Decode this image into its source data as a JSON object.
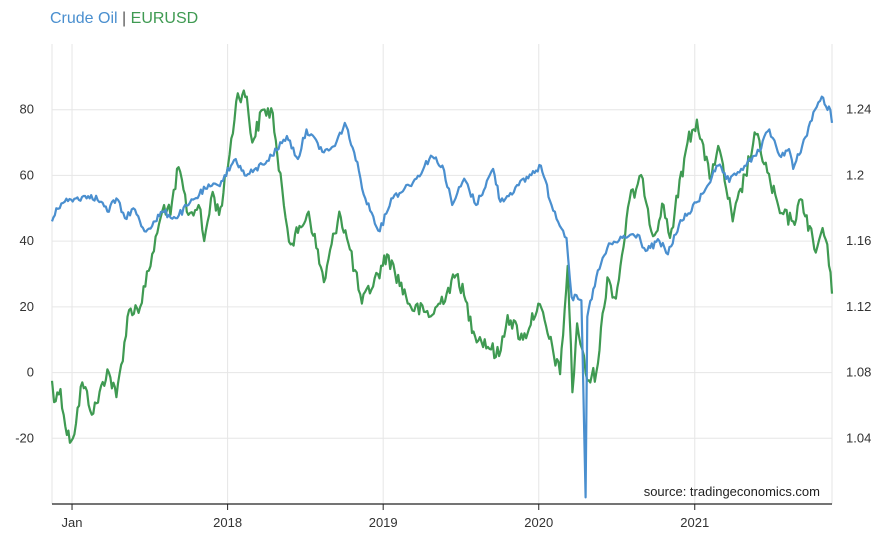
{
  "title": {
    "series1": "Crude Oil",
    "separator": "|",
    "series2": "EURUSD"
  },
  "source": "source: tradingeconomics.com",
  "colors": {
    "crude_oil": "#4a8fcf",
    "eurusd": "#3f9a52",
    "grid": "#e6e6e6",
    "axis": "#222222"
  },
  "chart_data": {
    "type": "line",
    "title": "",
    "xlabel": "",
    "ylabel_left": "",
    "ylabel_right": "",
    "x_ticks": [
      "Jan",
      "2018",
      "2019",
      "2020",
      "2021"
    ],
    "x_tick_dates": [
      "2017-01-01",
      "2018-01-01",
      "2019-01-01",
      "2020-01-01",
      "2021-01-01"
    ],
    "x_range": [
      "2016-11-15",
      "2021-11-19"
    ],
    "y_left_ticks": [
      80,
      60,
      40,
      20,
      0,
      -20
    ],
    "y_left_range": [
      -40,
      100
    ],
    "y_right_ticks": [
      "1.24",
      "1.2",
      "1.16",
      "1.12",
      "1.08",
      "1.04"
    ],
    "y_right_range": [
      1.0,
      1.28
    ],
    "grid": true,
    "legend": "top-left",
    "series": [
      {
        "name": "Crude Oil",
        "axis": "left",
        "points": [
          [
            "2016-11-15",
            46
          ],
          [
            "2016-11-25",
            50
          ],
          [
            "2016-12-15",
            52
          ],
          [
            "2017-01-10",
            53
          ],
          [
            "2017-02-15",
            54
          ],
          [
            "2017-03-10",
            52
          ],
          [
            "2017-03-25",
            49
          ],
          [
            "2017-04-15",
            53
          ],
          [
            "2017-05-05",
            47
          ],
          [
            "2017-05-25",
            50
          ],
          [
            "2017-06-20",
            43
          ],
          [
            "2017-07-15",
            46
          ],
          [
            "2017-08-01",
            49
          ],
          [
            "2017-09-01",
            47
          ],
          [
            "2017-10-01",
            51
          ],
          [
            "2017-11-10",
            56
          ],
          [
            "2017-12-10",
            57
          ],
          [
            "2018-01-20",
            65
          ],
          [
            "2018-02-10",
            60
          ],
          [
            "2018-03-01",
            61
          ],
          [
            "2018-04-15",
            66
          ],
          [
            "2018-05-20",
            72
          ],
          [
            "2018-06-15",
            65
          ],
          [
            "2018-07-05",
            74
          ],
          [
            "2018-08-15",
            67
          ],
          [
            "2018-09-10",
            69
          ],
          [
            "2018-10-03",
            76
          ],
          [
            "2018-10-25",
            67
          ],
          [
            "2018-11-20",
            53
          ],
          [
            "2018-12-24",
            43
          ],
          [
            "2019-01-20",
            53
          ],
          [
            "2019-02-20",
            56
          ],
          [
            "2019-03-20",
            59
          ],
          [
            "2019-04-23",
            66
          ],
          [
            "2019-05-20",
            63
          ],
          [
            "2019-06-12",
            51
          ],
          [
            "2019-07-10",
            59
          ],
          [
            "2019-08-07",
            51
          ],
          [
            "2019-09-16",
            62
          ],
          [
            "2019-10-03",
            52
          ],
          [
            "2019-11-15",
            57
          ],
          [
            "2020-01-06",
            63
          ],
          [
            "2020-01-31",
            51
          ],
          [
            "2020-03-06",
            41
          ],
          [
            "2020-03-18",
            23
          ],
          [
            "2020-04-10",
            22
          ],
          [
            "2020-04-20",
            -38
          ],
          [
            "2020-04-24",
            17
          ],
          [
            "2020-05-15",
            29
          ],
          [
            "2020-06-10",
            38
          ],
          [
            "2020-07-15",
            41
          ],
          [
            "2020-08-20",
            42
          ],
          [
            "2020-09-08",
            37
          ],
          [
            "2020-10-10",
            40
          ],
          [
            "2020-10-30",
            36
          ],
          [
            "2020-11-25",
            45
          ],
          [
            "2021-01-08",
            52
          ],
          [
            "2021-02-25",
            63
          ],
          [
            "2021-03-23",
            58
          ],
          [
            "2021-04-20",
            62
          ],
          [
            "2021-05-25",
            66
          ],
          [
            "2021-06-25",
            74
          ],
          [
            "2021-07-19",
            66
          ],
          [
            "2021-08-10",
            68
          ],
          [
            "2021-08-20",
            62
          ],
          [
            "2021-09-10",
            69
          ],
          [
            "2021-10-10",
            80
          ],
          [
            "2021-10-26",
            84
          ],
          [
            "2021-11-05",
            81
          ],
          [
            "2021-11-15",
            80
          ],
          [
            "2021-11-19",
            76
          ]
        ]
      },
      {
        "name": "EURUSD",
        "axis": "right",
        "points": [
          [
            "2016-11-15",
            1.075
          ],
          [
            "2016-11-20",
            1.062
          ],
          [
            "2016-12-05",
            1.07
          ],
          [
            "2016-12-20",
            1.042
          ],
          [
            "2017-01-03",
            1.04
          ],
          [
            "2017-01-25",
            1.074
          ],
          [
            "2017-02-20",
            1.055
          ],
          [
            "2017-03-25",
            1.082
          ],
          [
            "2017-04-15",
            1.065
          ],
          [
            "2017-05-15",
            1.118
          ],
          [
            "2017-06-10",
            1.12
          ],
          [
            "2017-06-30",
            1.142
          ],
          [
            "2017-07-20",
            1.165
          ],
          [
            "2017-08-05",
            1.182
          ],
          [
            "2017-08-20",
            1.176
          ],
          [
            "2017-09-08",
            1.205
          ],
          [
            "2017-10-01",
            1.176
          ],
          [
            "2017-10-25",
            1.182
          ],
          [
            "2017-11-07",
            1.16
          ],
          [
            "2017-11-27",
            1.19
          ],
          [
            "2017-12-12",
            1.176
          ],
          [
            "2017-12-29",
            1.2
          ],
          [
            "2018-01-25",
            1.25
          ],
          [
            "2018-02-15",
            1.248
          ],
          [
            "2018-02-28",
            1.22
          ],
          [
            "2018-03-25",
            1.24
          ],
          [
            "2018-04-17",
            1.238
          ],
          [
            "2018-05-01",
            1.203
          ],
          [
            "2018-05-29",
            1.158
          ],
          [
            "2018-06-15",
            1.165
          ],
          [
            "2018-07-10",
            1.178
          ],
          [
            "2018-08-15",
            1.135
          ],
          [
            "2018-09-20",
            1.178
          ],
          [
            "2018-10-15",
            1.155
          ],
          [
            "2018-11-12",
            1.122
          ],
          [
            "2018-12-31",
            1.145
          ],
          [
            "2019-01-10",
            1.152
          ],
          [
            "2019-03-07",
            1.12
          ],
          [
            "2019-04-26",
            1.115
          ],
          [
            "2019-06-25",
            1.14
          ],
          [
            "2019-08-01",
            1.105
          ],
          [
            "2019-09-30",
            1.09
          ],
          [
            "2019-10-20",
            1.115
          ],
          [
            "2019-11-25",
            1.1
          ],
          [
            "2019-12-31",
            1.122
          ],
          [
            "2020-02-20",
            1.079
          ],
          [
            "2020-03-09",
            1.145
          ],
          [
            "2020-03-20",
            1.068
          ],
          [
            "2020-03-31",
            1.11
          ],
          [
            "2020-04-24",
            1.075
          ],
          [
            "2020-05-15",
            1.08
          ],
          [
            "2020-06-10",
            1.138
          ],
          [
            "2020-06-30",
            1.125
          ],
          [
            "2020-08-01",
            1.185
          ],
          [
            "2020-09-01",
            1.198
          ],
          [
            "2020-09-25",
            1.163
          ],
          [
            "2020-10-20",
            1.182
          ],
          [
            "2020-11-04",
            1.162
          ],
          [
            "2020-12-15",
            1.22
          ],
          [
            "2021-01-06",
            1.234
          ],
          [
            "2021-02-05",
            1.198
          ],
          [
            "2021-02-25",
            1.218
          ],
          [
            "2021-03-31",
            1.172
          ],
          [
            "2021-05-25",
            1.225
          ],
          [
            "2021-06-28",
            1.195
          ],
          [
            "2021-07-20",
            1.177
          ],
          [
            "2021-08-20",
            1.172
          ],
          [
            "2021-09-10",
            1.185
          ],
          [
            "2021-10-12",
            1.153
          ],
          [
            "2021-10-28",
            1.168
          ],
          [
            "2021-11-08",
            1.158
          ],
          [
            "2021-11-12",
            1.145
          ],
          [
            "2021-11-19",
            1.128
          ]
        ]
      }
    ]
  }
}
